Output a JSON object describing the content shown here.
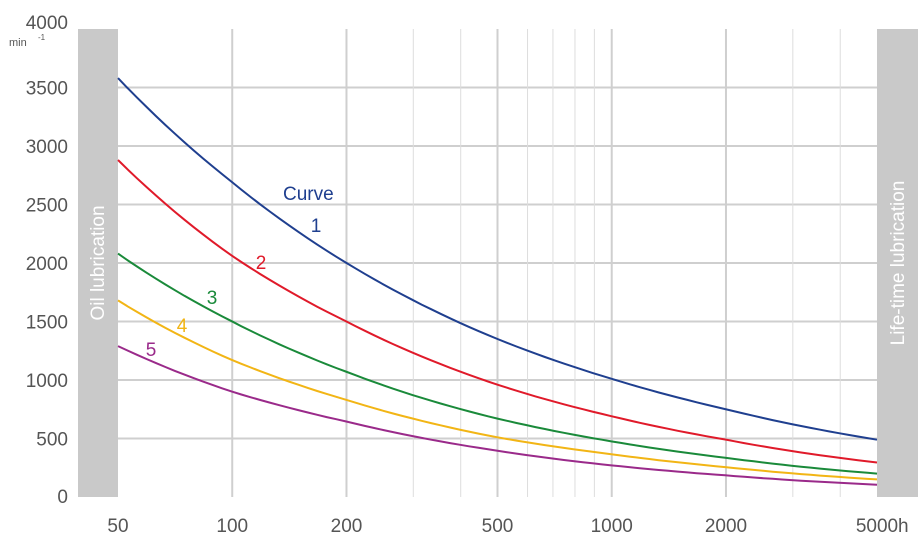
{
  "chart_data": {
    "type": "line",
    "x_scale": "log",
    "xlim": [
      50,
      5000
    ],
    "ylim": [
      0,
      4000
    ],
    "y_unit": "min",
    "y_unit_exp": "-1",
    "x_unit": "h",
    "grid": true,
    "y_ticks": [
      0,
      500,
      1000,
      1500,
      2000,
      2500,
      3000,
      3500,
      4000
    ],
    "x_ticks": [
      50,
      100,
      200,
      500,
      1000,
      2000,
      5000
    ],
    "x_tick_labels": [
      "50",
      "100",
      "200",
      "500",
      "1000",
      "2000",
      "5000"
    ],
    "x_minor_grid": [
      300,
      400,
      600,
      700,
      800,
      900,
      3000,
      4000
    ],
    "left_band_label": "Oil lubrication",
    "right_band_label": "Life-time lubrication",
    "curve_heading": "Curve",
    "series": [
      {
        "name": "1",
        "color": "#1f3f8f",
        "x": [
          50,
          100,
          200,
          500,
          1000,
          2000,
          5000
        ],
        "y": [
          3580,
          2690,
          2000,
          1350,
          1010,
          750,
          490
        ]
      },
      {
        "name": "2",
        "color": "#e01a2a",
        "x": [
          50,
          100,
          200,
          500,
          1000,
          2000,
          5000
        ],
        "y": [
          2880,
          2060,
          1500,
          960,
          690,
          490,
          295
        ]
      },
      {
        "name": "3",
        "color": "#1a8a3a",
        "x": [
          50,
          100,
          200,
          500,
          1000,
          2000,
          5000
        ],
        "y": [
          2080,
          1500,
          1070,
          670,
          475,
          335,
          200
        ]
      },
      {
        "name": "4",
        "color": "#f2b515",
        "x": [
          50,
          100,
          200,
          500,
          1000,
          2000,
          5000
        ],
        "y": [
          1680,
          1170,
          830,
          510,
          365,
          255,
          150
        ]
      },
      {
        "name": "5",
        "color": "#9a2a8a",
        "x": [
          50,
          100,
          200,
          500,
          1000,
          2000,
          5000
        ],
        "y": [
          1290,
          900,
          645,
          395,
          270,
          185,
          105
        ]
      }
    ]
  }
}
